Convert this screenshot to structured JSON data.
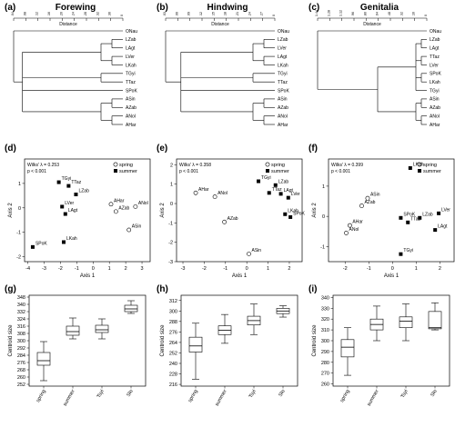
{
  "panels": [
    {
      "letter": "(a)",
      "title": "Forewing"
    },
    {
      "letter": "(b)",
      "title": "Hindwing"
    },
    {
      "letter": "(c)",
      "title": "Genitalia"
    },
    {
      "letter": "(d)"
    },
    {
      "letter": "(e)"
    },
    {
      "letter": "(f)"
    },
    {
      "letter": "(g)"
    },
    {
      "letter": "(h)"
    },
    {
      "letter": "(i)"
    }
  ],
  "dendrogram_axis_label": "Distance",
  "dendrogram_ticks": [
    [
      ".04",
      ".08",
      ".12",
      ".16",
      ".20",
      ".24",
      ".28",
      ".32",
      ".36",
      "0"
    ],
    [
      ".03",
      ".06",
      ".09",
      ".12",
      ".15",
      ".18",
      ".21",
      ".24",
      ".27",
      "0"
    ],
    [
      "1.44",
      "1.28",
      "1.12",
      ".96",
      ".80",
      ".64",
      ".48",
      ".32",
      ".16",
      "0"
    ]
  ],
  "scatter_axis": {
    "x": "Axis 1",
    "y": "Axis 2"
  },
  "legend": {
    "spring": "spring",
    "summer": "summer"
  },
  "box_axis_label": "Centroid size",
  "chart_data": [
    {
      "type": "dendrogram",
      "title": "Forewing",
      "leaves": [
        "ONau",
        "LZab",
        "LAgt",
        "LVer",
        "LKah",
        "TGyi",
        "TTaz",
        "SPoK",
        "ASin",
        "AZab",
        "ANol",
        "AHar"
      ]
    },
    {
      "type": "dendrogram",
      "title": "Hindwing",
      "leaves": [
        "ONau",
        "LZab",
        "LVer",
        "LAgt",
        "LKah",
        "TGyi",
        "TTaz",
        "SPoK",
        "ASin",
        "AZab",
        "ANol",
        "AHar"
      ]
    },
    {
      "type": "dendrogram",
      "title": "Genitalia",
      "leaves": [
        "ONau",
        "LZab",
        "LAgt",
        "TTaz",
        "LVer",
        "SPoK",
        "LKah",
        "TGyi",
        "ASin",
        "AZab",
        "ANol",
        "AHar"
      ]
    },
    {
      "type": "scatter",
      "stat_lines": [
        "Wilks' λ = 0.253",
        "p < 0.001"
      ],
      "xlabel": "Axis 1",
      "ylabel": "Axis 2",
      "xlim": [
        -4.2,
        3.5
      ],
      "ylim": [
        -2.2,
        2.0
      ],
      "xticks": [
        -4,
        -3,
        -2,
        -1,
        0,
        1,
        2,
        3
      ],
      "yticks": [
        -2,
        -1,
        0,
        1
      ],
      "points": [
        {
          "label": "TGyi",
          "season": "summer",
          "x": -2.1,
          "y": 1.05
        },
        {
          "label": "TTaz",
          "season": "summer",
          "x": -1.5,
          "y": 0.9
        },
        {
          "label": "LZab",
          "season": "summer",
          "x": -1.05,
          "y": 0.55
        },
        {
          "label": "LVer",
          "season": "summer",
          "x": -1.9,
          "y": 0.05
        },
        {
          "label": "LAgt",
          "season": "summer",
          "x": -1.7,
          "y": -0.25
        },
        {
          "label": "SPoK",
          "season": "summer",
          "x": -3.7,
          "y": -1.6
        },
        {
          "label": "LKah",
          "season": "summer",
          "x": -1.8,
          "y": -1.4
        },
        {
          "label": "AHar",
          "season": "spring",
          "x": 1.1,
          "y": 0.15
        },
        {
          "label": "ANol",
          "season": "spring",
          "x": 2.6,
          "y": 0.05
        },
        {
          "label": "AZab",
          "season": "spring",
          "x": 1.4,
          "y": -0.15
        },
        {
          "label": "ASin",
          "season": "spring",
          "x": 2.2,
          "y": -0.9
        }
      ]
    },
    {
      "type": "scatter",
      "stat_lines": [
        "Wilks' λ = 0.358",
        "p < 0.001"
      ],
      "xlabel": "Axis 1",
      "ylabel": "Axis 2",
      "xlim": [
        -3.3,
        2.6
      ],
      "ylim": [
        -3.0,
        2.3
      ],
      "xticks": [
        -3,
        -2,
        -1,
        0,
        1,
        2
      ],
      "yticks": [
        -3,
        -2,
        -1,
        0,
        1,
        2
      ],
      "points": [
        {
          "label": "TGyi",
          "season": "summer",
          "x": 0.55,
          "y": 1.15
        },
        {
          "label": "LZab",
          "season": "summer",
          "x": 1.35,
          "y": 0.95
        },
        {
          "label": "TTaz",
          "season": "summer",
          "x": 1.05,
          "y": 0.55
        },
        {
          "label": "LAgt",
          "season": "summer",
          "x": 1.6,
          "y": 0.5
        },
        {
          "label": "LVer",
          "season": "summer",
          "x": 1.95,
          "y": 0.3
        },
        {
          "label": "LKah",
          "season": "summer",
          "x": 1.8,
          "y": -0.55
        },
        {
          "label": "SPoK",
          "season": "summer",
          "x": 2.05,
          "y": -0.7
        },
        {
          "label": "AHar",
          "season": "spring",
          "x": -2.4,
          "y": 0.55
        },
        {
          "label": "ANol",
          "season": "spring",
          "x": -1.5,
          "y": 0.35
        },
        {
          "label": "AZab",
          "season": "spring",
          "x": -1.05,
          "y": -0.95
        },
        {
          "label": "ASin",
          "season": "spring",
          "x": 0.1,
          "y": -2.6
        }
      ]
    },
    {
      "type": "scatter",
      "stat_lines": [
        "Wilks' λ = 0.399",
        "p < 0.001"
      ],
      "xlabel": "Axis 1",
      "ylabel": "Axis 2",
      "xlim": [
        -2.7,
        2.6
      ],
      "ylim": [
        -1.5,
        1.9
      ],
      "xticks": [
        -2,
        -1,
        0,
        1,
        2
      ],
      "yticks": [
        -1,
        0,
        1
      ],
      "points": [
        {
          "label": "LKah",
          "season": "summer",
          "x": 0.75,
          "y": 1.6
        },
        {
          "label": "LVer",
          "season": "summer",
          "x": 1.95,
          "y": 0.1
        },
        {
          "label": "SPoK",
          "season": "summer",
          "x": 0.35,
          "y": -0.05
        },
        {
          "label": "LZab",
          "season": "summer",
          "x": 1.15,
          "y": -0.05
        },
        {
          "label": "TTaz",
          "season": "summer",
          "x": 0.65,
          "y": -0.2
        },
        {
          "label": "LAgt",
          "season": "summer",
          "x": 1.8,
          "y": -0.45
        },
        {
          "label": "TGyi",
          "season": "summer",
          "x": 0.35,
          "y": -1.25
        },
        {
          "label": "ASin",
          "season": "spring",
          "x": -1.05,
          "y": 0.6
        },
        {
          "label": "AZab",
          "season": "spring",
          "x": -1.3,
          "y": 0.35
        },
        {
          "label": "AHar",
          "season": "spring",
          "x": -1.8,
          "y": -0.3
        },
        {
          "label": "ANol",
          "season": "spring",
          "x": -1.95,
          "y": -0.55
        }
      ]
    },
    {
      "type": "box",
      "ylabel": "Centroid size",
      "categories": [
        "spring",
        "summer",
        "Tsyi",
        "Slo"
      ],
      "ylim": [
        250,
        350
      ],
      "yticks": [
        252,
        260,
        268,
        276,
        284,
        292,
        300,
        308,
        316,
        324,
        332,
        340,
        348
      ],
      "boxes": [
        {
          "min": 256,
          "q1": 273,
          "median": 278,
          "q3": 287,
          "max": 299
        },
        {
          "min": 302,
          "q1": 306,
          "median": 310,
          "q3": 316,
          "max": 325
        },
        {
          "min": 302,
          "q1": 309,
          "median": 312,
          "q3": 317,
          "max": 324
        },
        {
          "min": 330,
          "q1": 332,
          "median": 335,
          "q3": 339,
          "max": 344
        }
      ]
    },
    {
      "type": "box",
      "ylabel": "Centroid size",
      "categories": [
        "spring",
        "summer",
        "Tsyi",
        "Slo"
      ],
      "ylim": [
        214,
        318
      ],
      "yticks": [
        216,
        228,
        240,
        252,
        264,
        276,
        288,
        300,
        312
      ],
      "boxes": [
        {
          "min": 222,
          "q1": 253,
          "median": 260,
          "q3": 270,
          "max": 286
        },
        {
          "min": 263,
          "q1": 273,
          "median": 278,
          "q3": 283,
          "max": 296
        },
        {
          "min": 273,
          "q1": 284,
          "median": 289,
          "q3": 294,
          "max": 308
        },
        {
          "min": 293,
          "q1": 297,
          "median": 300,
          "q3": 303,
          "max": 306
        }
      ]
    },
    {
      "type": "box",
      "ylabel": "Centroid size",
      "categories": [
        "spring",
        "summer",
        "Tsyi",
        "Slo"
      ],
      "ylim": [
        258,
        342
      ],
      "yticks": [
        260,
        270,
        280,
        290,
        300,
        310,
        320,
        330,
        340
      ],
      "boxes": [
        {
          "min": 268,
          "q1": 285,
          "median": 294,
          "q3": 301,
          "max": 312
        },
        {
          "min": 300,
          "q1": 310,
          "median": 315,
          "q3": 320,
          "max": 332
        },
        {
          "min": 300,
          "q1": 312,
          "median": 318,
          "q3": 322,
          "max": 334
        },
        {
          "min": 310,
          "q1": 311,
          "median": 312,
          "q3": 327,
          "max": 335
        }
      ]
    }
  ]
}
